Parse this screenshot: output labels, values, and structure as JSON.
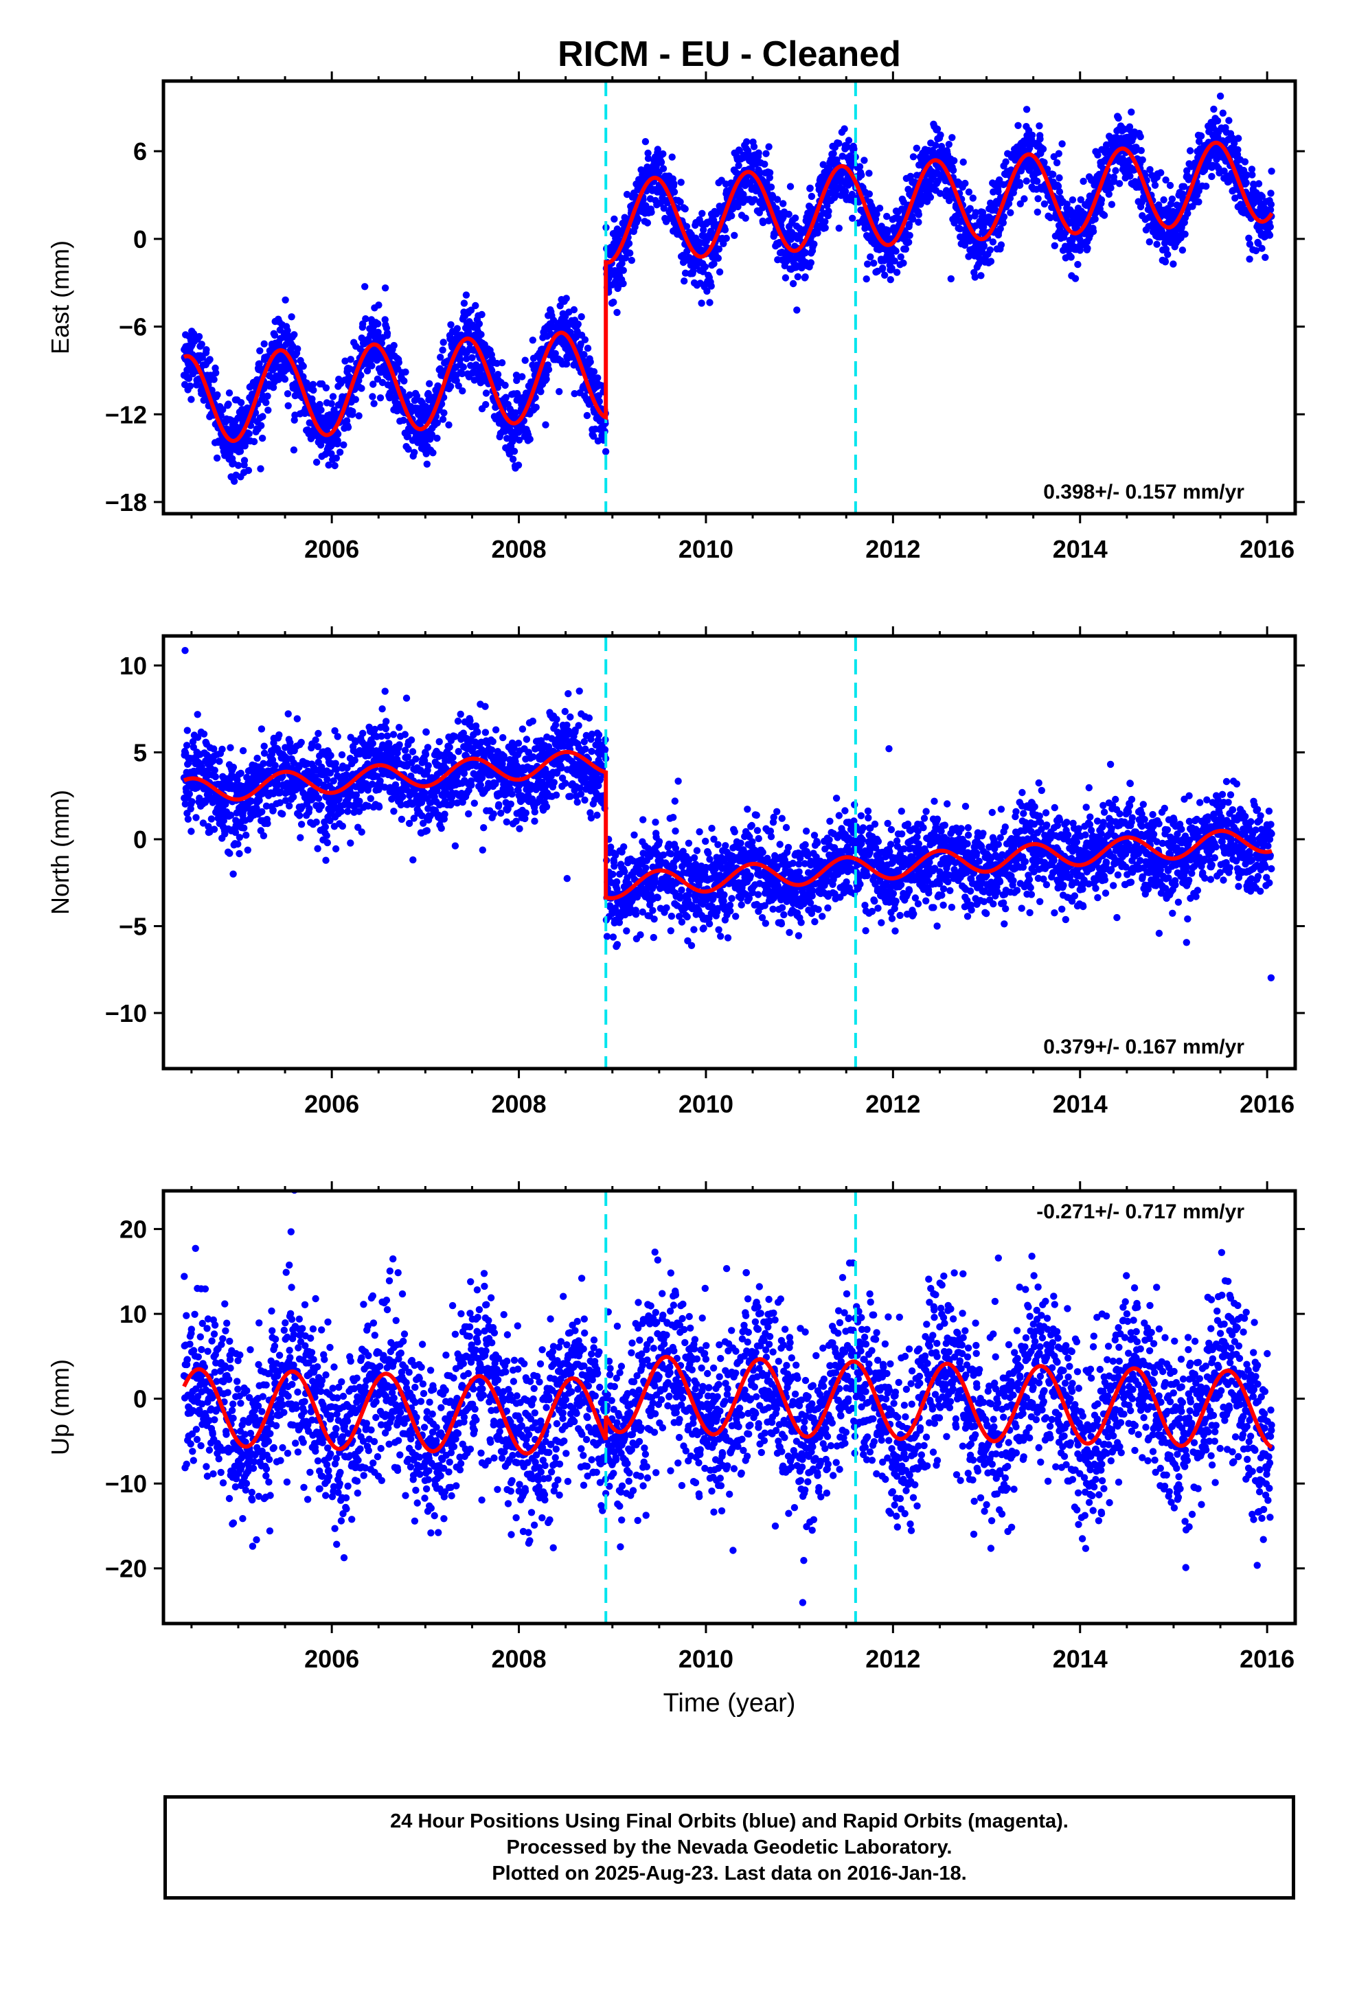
{
  "title": "RICM  - EU - Cleaned",
  "x_axis_label": "Time (year)",
  "footer_lines": [
    "24 Hour Positions Using Final Orbits (blue) and Rapid Orbits (magenta).",
    "Processed by the Nevada Geodetic Laboratory.",
    "Plotted on 2025-Aug-23. Last data on 2016-Jan-18."
  ],
  "colors": {
    "final_orbits": "#0000ff",
    "model": "#ff0000",
    "events": "#00e5ee",
    "axes": "#000000"
  },
  "chart_data": [
    {
      "type": "scatter",
      "component": "East",
      "ylabel": "East (mm)",
      "xlim": [
        2004.2,
        2016.3
      ],
      "ylim": [
        -18.8,
        10.8
      ],
      "xticks": [
        2006,
        2008,
        2010,
        2012,
        2014,
        2016
      ],
      "yticks": [
        -18,
        -12,
        -6,
        0,
        6
      ],
      "rate_label": "0.398+/- 0.157 mm/yr",
      "data_range": [
        2004.42,
        2016.05
      ],
      "event_lines": [
        2008.93,
        2011.6
      ],
      "series": [
        {
          "name": "Final orbit daily positions",
          "kind": "points",
          "scatter_sigma": 1.2
        },
        {
          "name": "Model fit",
          "kind": "line",
          "segments": [
            {
              "x_start": 2004.42,
              "x_end": 2008.93,
              "offset_at_2004_5": -11.0,
              "rate": 0.4,
              "annual_amplitude": 3.0,
              "annual_peak": 0.45
            },
            {
              "x_start": 2008.93,
              "x_end": 2016.05,
              "offset_at_2004_5": -0.6,
              "rate": 0.4,
              "annual_amplitude": 2.8,
              "annual_peak": 0.45
            }
          ]
        }
      ]
    },
    {
      "type": "scatter",
      "component": "North",
      "ylabel": "North (mm)",
      "xlim": [
        2004.2,
        2016.3
      ],
      "ylim": [
        -13.2,
        11.7
      ],
      "xticks": [
        2006,
        2008,
        2010,
        2012,
        2014,
        2016
      ],
      "yticks": [
        -10,
        -5,
        0,
        5,
        10
      ],
      "rate_label": "0.379+/- 0.167 mm/yr",
      "data_range": [
        2004.42,
        2016.05
      ],
      "event_lines": [
        2008.93,
        2011.6
      ],
      "series": [
        {
          "name": "Final orbit daily positions",
          "kind": "points",
          "scatter_sigma": 1.3
        },
        {
          "name": "Model fit",
          "kind": "line",
          "segments": [
            {
              "x_start": 2004.42,
              "x_end": 2008.93,
              "offset_at_2004_5": 2.8,
              "rate": 0.38,
              "annual_amplitude": 0.7,
              "annual_peak": 0.5
            },
            {
              "x_start": 2008.93,
              "x_end": 2016.05,
              "offset_at_2004_5": -4.4,
              "rate": 0.38,
              "annual_amplitude": 0.7,
              "annual_peak": 0.5
            }
          ]
        }
      ]
    },
    {
      "type": "scatter",
      "component": "Up",
      "ylabel": "Up (mm)",
      "xlim": [
        2004.2,
        2016.3
      ],
      "ylim": [
        -26.5,
        24.5
      ],
      "xticks": [
        2006,
        2008,
        2010,
        2012,
        2014,
        2016
      ],
      "yticks": [
        -20,
        -10,
        0,
        10,
        20
      ],
      "rate_label": "-0.271+/- 0.717 mm/yr",
      "data_range": [
        2004.42,
        2016.05
      ],
      "event_lines": [
        2008.93,
        2011.6
      ],
      "series": [
        {
          "name": "Final orbit daily positions",
          "kind": "points",
          "scatter_sigma": 5.0
        },
        {
          "name": "Model fit",
          "kind": "line",
          "segments": [
            {
              "x_start": 2004.42,
              "x_end": 2008.93,
              "offset_at_2004_5": -1.0,
              "rate": -0.27,
              "annual_amplitude": 4.5,
              "annual_peak": 0.58
            },
            {
              "x_start": 2008.93,
              "x_end": 2016.05,
              "offset_at_2004_5": 1.8,
              "rate": -0.27,
              "annual_amplitude": 4.5,
              "annual_peak": 0.58
            }
          ]
        }
      ]
    }
  ]
}
